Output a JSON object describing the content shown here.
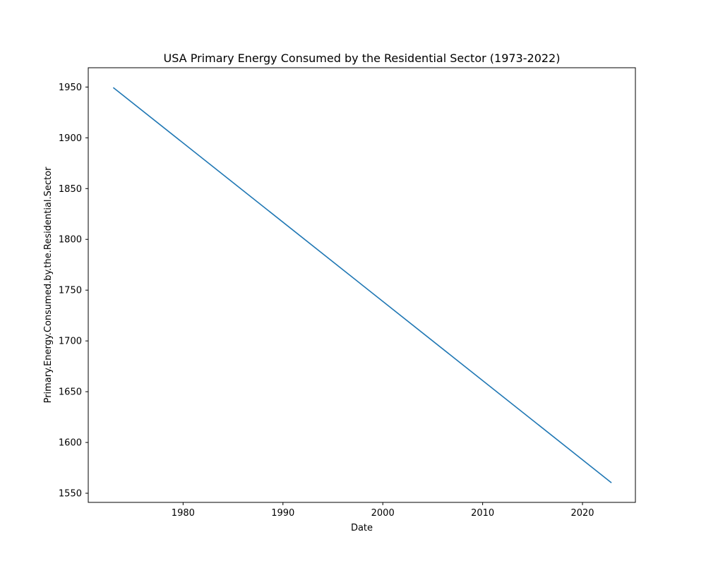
{
  "chart_data": {
    "type": "line",
    "title": "USA Primary Energy Consumed by the Residential Sector (1973-2022)",
    "xlabel": "Date",
    "ylabel": "Primary.Energy.Consumed.by.the.Residential.Sector",
    "xlim": [
      1970.5,
      2025.3
    ],
    "ylim": [
      1541,
      1969
    ],
    "x_ticks": [
      1980,
      1990,
      2000,
      2010,
      2020
    ],
    "y_ticks": [
      1550,
      1600,
      1650,
      1700,
      1750,
      1800,
      1850,
      1900,
      1950
    ],
    "grid": false,
    "series": [
      {
        "color": "#1f77b4",
        "x": [
          1973.0,
          2022.9
        ],
        "y": [
          1949.5,
          1560.3
        ]
      }
    ]
  }
}
